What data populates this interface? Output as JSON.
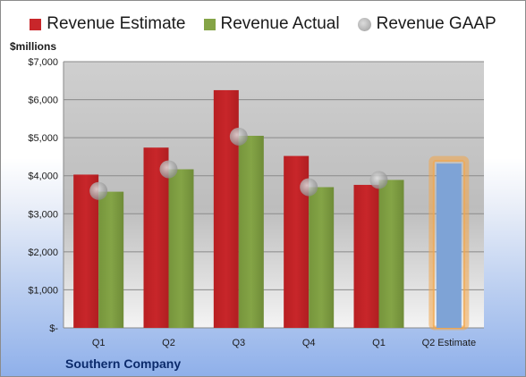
{
  "legend": {
    "estimate": "Revenue Estimate",
    "actual": "Revenue Actual",
    "gaap": "Revenue GAAP"
  },
  "unit_label": "$millions",
  "company": "Southern Company",
  "colors": {
    "estimate": "#c8262a",
    "actual": "#84a446",
    "gaap": "#a8a8a8",
    "highlight_bar": "#7ea3d6",
    "highlight_glow": "#f3a64b",
    "plot_bg": "#c9c9c9"
  },
  "chart_data": {
    "type": "bar",
    "categories": [
      "Q1",
      "Q2",
      "Q3",
      "Q4",
      "Q1",
      "Q2 Estimate"
    ],
    "series": [
      {
        "name": "Revenue Estimate",
        "values": [
          4030,
          4740,
          6250,
          4520,
          3760,
          null
        ]
      },
      {
        "name": "Revenue Actual",
        "values": [
          3580,
          4170,
          5050,
          3700,
          3890,
          null
        ]
      },
      {
        "name": "Revenue GAAP",
        "values": [
          3600,
          4170,
          5030,
          3700,
          3890,
          null
        ]
      }
    ],
    "forecast": {
      "category": "Q2 Estimate",
      "value": 4320
    },
    "ylim": [
      0,
      7000
    ],
    "yticks": [
      0,
      1000,
      2000,
      3000,
      4000,
      5000,
      6000,
      7000
    ],
    "ytick_labels": [
      "$-",
      "$1,000",
      "$2,000",
      "$3,000",
      "$4,000",
      "$5,000",
      "$6,000",
      "$7,000"
    ],
    "ylabel": "$millions",
    "grid": true,
    "legend_position": "top"
  }
}
